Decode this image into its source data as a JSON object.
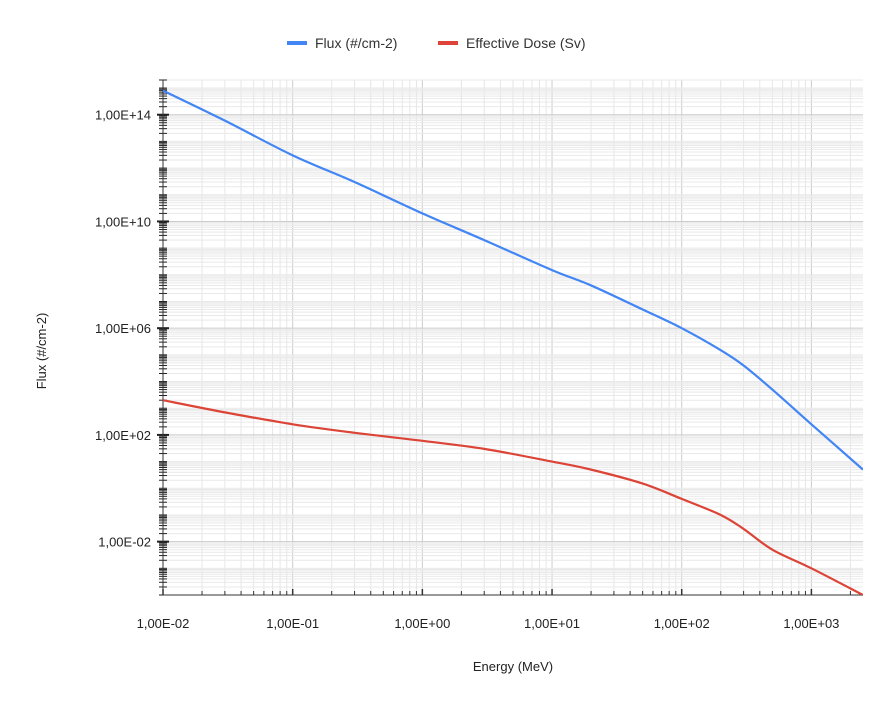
{
  "chart_data": {
    "type": "line",
    "title": "",
    "xlabel": "Energy (MeV)",
    "ylabel": "Flux (#/cm-2)",
    "xscale": "log",
    "yscale": "log",
    "xlim": [
      0.01,
      2500
    ],
    "ylim": [
      0.0001,
      2000000000000000.0
    ],
    "x_ticks": [
      {
        "value": 0.01,
        "label": "1,00E-02"
      },
      {
        "value": 0.1,
        "label": "1,00E-01"
      },
      {
        "value": 1,
        "label": "1,00E+00"
      },
      {
        "value": 10,
        "label": "1,00E+01"
      },
      {
        "value": 100,
        "label": "1,00E+02"
      },
      {
        "value": 1000,
        "label": "1,00E+03"
      }
    ],
    "y_ticks": [
      {
        "value": 0.01,
        "label": "1,00E-02"
      },
      {
        "value": 100,
        "label": "1,00E+02"
      },
      {
        "value": 1000000,
        "label": "1,00E+06"
      },
      {
        "value": 10000000000,
        "label": "1,00E+10"
      },
      {
        "value": 100000000000000,
        "label": "1,00E+14"
      }
    ],
    "grid": true,
    "legend_position": "top",
    "series": [
      {
        "name": "Flux (#/cm-2)",
        "color": "#4285f4",
        "x": [
          0.01,
          0.03,
          0.1,
          0.3,
          1,
          3,
          10,
          20,
          50,
          100,
          200,
          300,
          500,
          1000,
          2500
        ],
        "y": [
          800000000000000.0,
          60000000000000.0,
          3000000000000.0,
          300000000000.0,
          20000000000.0,
          2000000000.0,
          150000000.0,
          40000000.0,
          5000000.0,
          1000000.0,
          150000.0,
          40000.0,
          5000.0,
          250,
          5
        ]
      },
      {
        "name": "Effective Dose (Sv)",
        "color": "#db4437",
        "x": [
          0.01,
          0.03,
          0.1,
          0.3,
          1,
          3,
          10,
          20,
          50,
          100,
          200,
          300,
          500,
          1000,
          2500
        ],
        "y": [
          2000,
          700,
          250,
          120,
          60,
          30,
          10,
          5,
          1.5,
          0.4,
          0.1,
          0.03,
          0.005,
          0.001,
          0.0001
        ]
      }
    ]
  }
}
